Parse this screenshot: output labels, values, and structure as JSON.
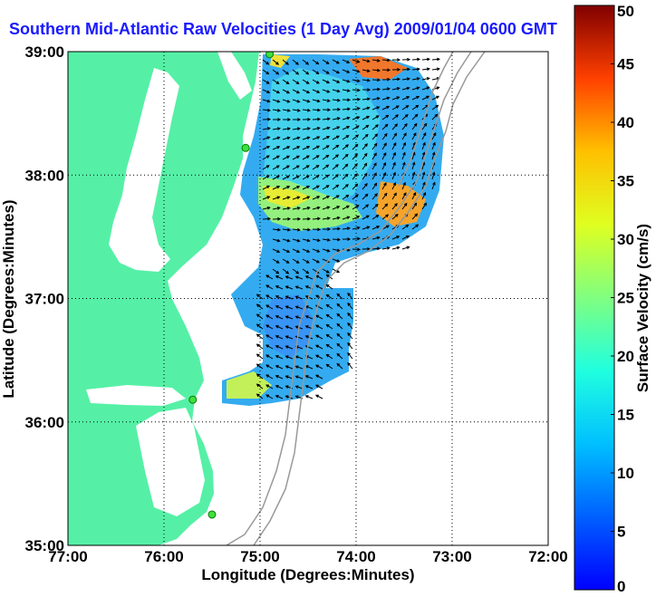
{
  "title": "Southern Mid-Atlantic Raw Velocities (1 Day Avg) 2009/01/04 0600 GMT",
  "chart_data": {
    "type": "heatmap",
    "subtype": "vector-velocity-map",
    "xlabel": "Longitude (Degrees:Minutes)",
    "ylabel": "Latitude (Degrees:Minutes)",
    "x_ticks": [
      "77:00",
      "76:00",
      "75:00",
      "74:00",
      "73:00",
      "72:00"
    ],
    "y_ticks": [
      "39:00",
      "38:00",
      "37:00",
      "36:00",
      "35:00"
    ],
    "xlim": [
      -77,
      -72
    ],
    "ylim": [
      35,
      39
    ],
    "grid": "dotted",
    "colorbar": {
      "label": "Surface Velocity (cm/s)",
      "range": [
        0,
        50
      ],
      "ticks": [
        "0",
        "5",
        "10",
        "15",
        "20",
        "25",
        "30",
        "35",
        "40",
        "45",
        "50"
      ],
      "colormap": "jet"
    },
    "stations": [
      {
        "lon": -74.9,
        "lat": 38.98
      },
      {
        "lon": -75.15,
        "lat": 38.22
      },
      {
        "lon": -75.7,
        "lat": 36.18
      },
      {
        "lon": -75.5,
        "lat": 35.25
      }
    ]
  },
  "colors": {
    "land": "#55f0a6",
    "title": "#1a1aff",
    "bathymetry": "#999999"
  }
}
